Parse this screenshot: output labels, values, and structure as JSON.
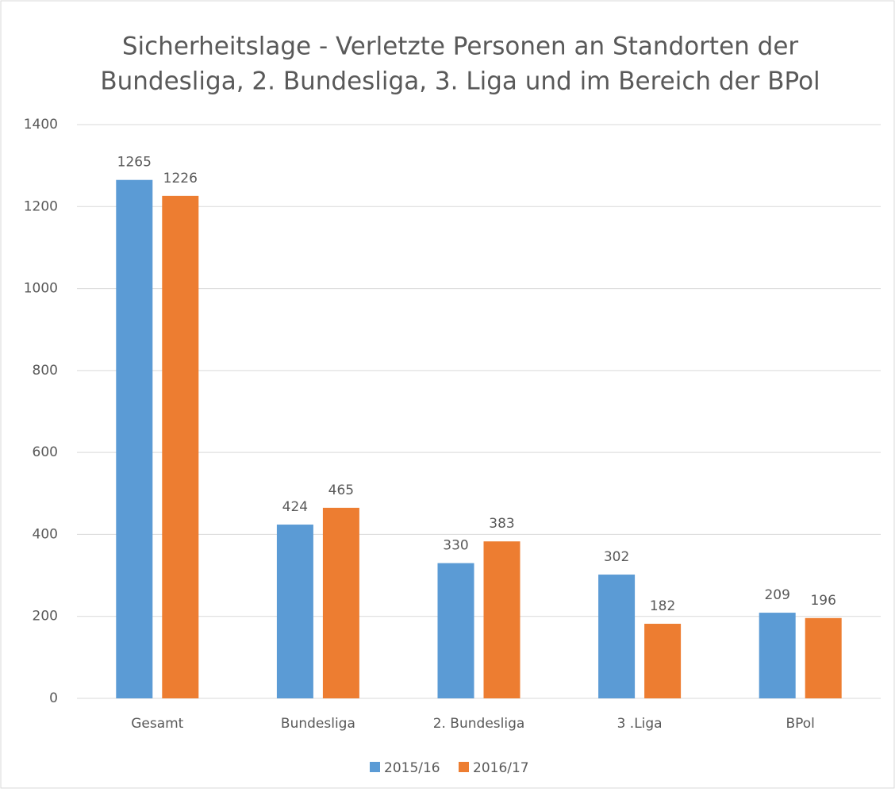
{
  "chart_data": {
    "type": "bar",
    "title": [
      "Sicherheitslage - Verletzte Personen an Standorten der",
      "Bundesliga, 2. Bundesliga, 3. Liga und im Bereich der BPol"
    ],
    "categories": [
      "Gesamt",
      "Bundesliga",
      "2. Bundesliga",
      "3 .Liga",
      "BPol"
    ],
    "series": [
      {
        "name": "2015/16",
        "color": "#5b9bd5",
        "values": [
          1265,
          424,
          330,
          302,
          209
        ]
      },
      {
        "name": "2016/17",
        "color": "#ed7d31",
        "values": [
          1226,
          465,
          383,
          182,
          196
        ]
      }
    ],
    "ylim": [
      0,
      1400
    ],
    "yticks": [
      0,
      200,
      400,
      600,
      800,
      1000,
      1200,
      1400
    ],
    "grid": true,
    "legend": "bottom"
  }
}
